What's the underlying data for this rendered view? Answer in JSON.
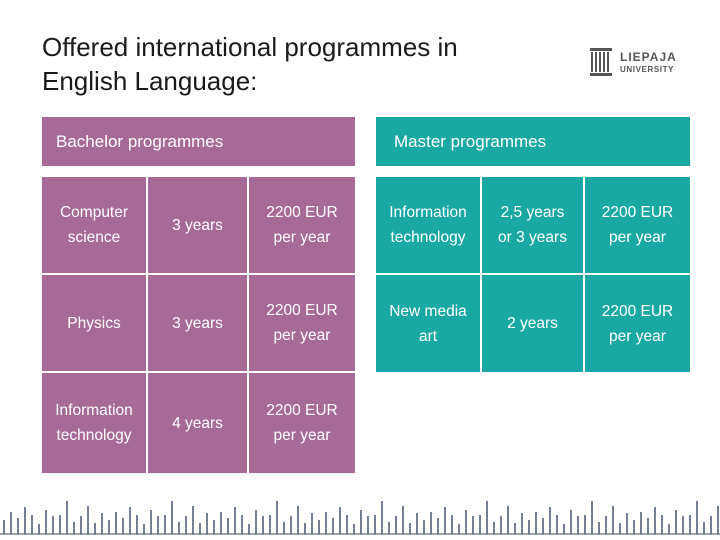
{
  "title": {
    "line1": "Offered international programmes in",
    "line2": "English Language:"
  },
  "logo": {
    "line1": "LIEPAJA",
    "line2": "UNIVERSITY",
    "icon": "columns-logo-icon"
  },
  "bachelor": {
    "header": "Bachelor  programmes",
    "rows": [
      {
        "name": "Computer\nscience",
        "duration": "3 years",
        "price": "2200 EUR\nper year"
      },
      {
        "name": "Physics",
        "duration": "3 years",
        "price": "2200 EUR\nper year"
      },
      {
        "name": "Information\ntechnology",
        "duration": "4 years",
        "price": "2200 EUR\nper year"
      }
    ]
  },
  "master": {
    "header": "Master programmes",
    "rows": [
      {
        "name": "Information\ntechnology",
        "duration": "2,5 years\nor 3 years",
        "price": "2200 EUR\nper year"
      },
      {
        "name": "New media\nart",
        "duration": "2 years",
        "price": "2200 EUR\nper year"
      }
    ]
  },
  "colors": {
    "bachelor": "#a76a96",
    "master": "#1aa8a4",
    "ruler": "#3a4a6a"
  }
}
